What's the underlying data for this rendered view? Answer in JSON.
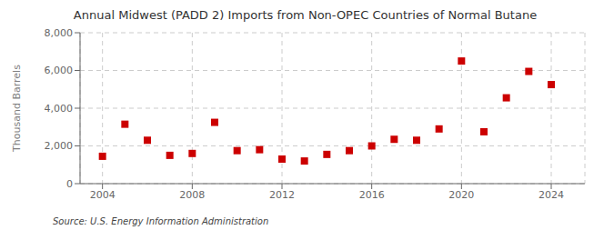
{
  "chart_data": {
    "type": "scatter",
    "title": "Annual Midwest (PADD 2) Imports from Non-OPEC Countries of Normal Butane",
    "ylabel": "Thousand Barrels",
    "source": "Source: U.S. Energy Information Administration",
    "x": [
      2004,
      2005,
      2006,
      2007,
      2008,
      2009,
      2010,
      2011,
      2012,
      2013,
      2014,
      2015,
      2016,
      2017,
      2018,
      2019,
      2020,
      2021,
      2022,
      2023,
      2024
    ],
    "values": [
      1450,
      3150,
      2300,
      1500,
      1600,
      3250,
      1750,
      1800,
      1300,
      1200,
      1550,
      1750,
      2000,
      2350,
      2300,
      2900,
      6500,
      2750,
      4550,
      5950,
      5250
    ],
    "color": "#cc0000",
    "marker": "square",
    "grid": true,
    "xlim": [
      2003.0,
      2025.5
    ],
    "xticks": [
      2004,
      2008,
      2012,
      2016,
      2020,
      2024
    ],
    "ylim": [
      0,
      8000
    ],
    "yticks": [
      0,
      {
        "value": 2000,
        "label": "2,000"
      },
      {
        "value": 4000,
        "label": "4,000"
      },
      {
        "value": 6000,
        "label": "6,000"
      },
      {
        "value": 8000,
        "label": "8,000"
      }
    ]
  }
}
